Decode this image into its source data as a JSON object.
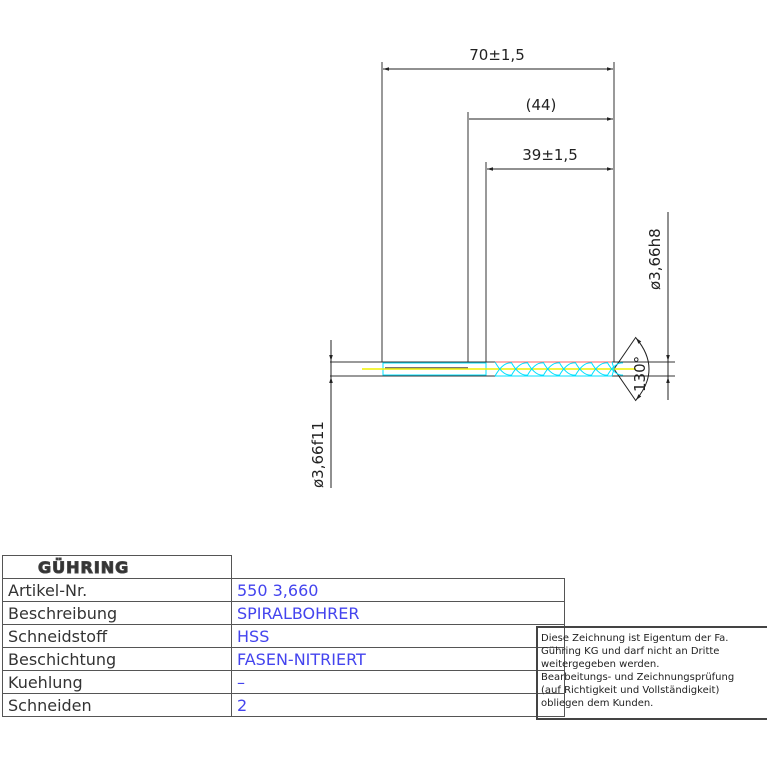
{
  "drawing": {
    "dimensions": {
      "overall_length": "70±1,5",
      "shank_length": "(44)",
      "flute_length": "39±1,5",
      "shank_diameter": "ø3,66h8",
      "body_diameter": "ø3,66f11",
      "point_angle": "130°"
    },
    "colors": {
      "outline": "#222222",
      "flute": "#00e0ff",
      "center": "#f0f000",
      "edge": "#ff6060"
    }
  },
  "title_block": {
    "logo": "GÜHRING",
    "rows": [
      {
        "label": "Artikel-Nr.",
        "value": "550 3,660"
      },
      {
        "label": "Beschreibung",
        "value": "SPIRALBOHRER"
      },
      {
        "label": "Schneidstoff",
        "value": "HSS"
      },
      {
        "label": "Beschichtung",
        "value": "FASEN-NITRIERT"
      },
      {
        "label": "Kuehlung",
        "value": "–"
      },
      {
        "label": "Schneiden",
        "value": "2"
      }
    ],
    "value_color": "#4444ee"
  },
  "notice": {
    "lines": [
      "Diese Zeichnung ist Eigentum der Fa.",
      "Gühring KG und darf nicht an Dritte",
      "weitergegeben werden.",
      "Bearbeitungs- und Zeichnungsprüfung",
      "(auf Richtigkeit und Vollständigkeit)",
      "obliegen dem Kunden."
    ]
  }
}
